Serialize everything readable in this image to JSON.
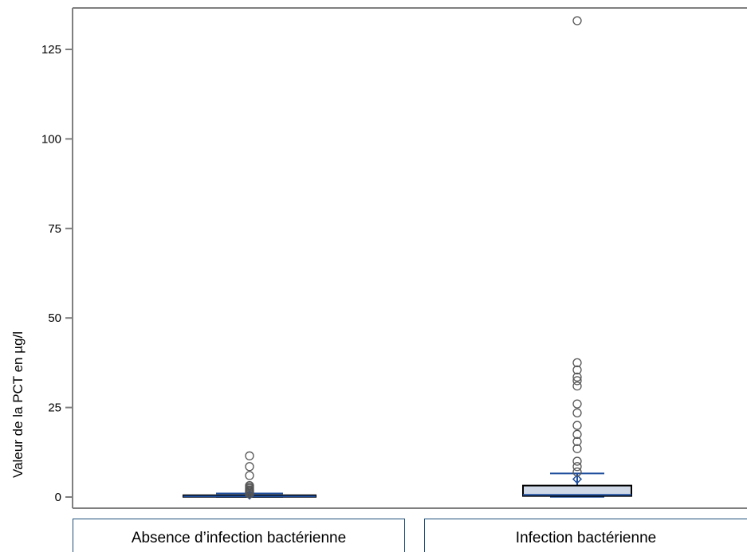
{
  "chart_data": {
    "type": "box",
    "ylabel": "Valeur de la PCT en µg/l",
    "xlabel": "",
    "ylim": [
      -3,
      136
    ],
    "yticks": [
      0,
      25,
      50,
      75,
      100,
      125
    ],
    "categories": [
      "Absence d’infection bactérienne",
      "Infection bactérienne"
    ],
    "series": [
      {
        "category": "Absence d’infection bactérienne",
        "q1": 0.1,
        "median": 0.2,
        "q3": 0.5,
        "whisker_low": 0.05,
        "whisker_high": 1.0,
        "mean": 0.6,
        "outliers": [
          11.5,
          8.5,
          6.0,
          3.2,
          2.8,
          2.4,
          2.0,
          1.8,
          1.5,
          1.3,
          0.9
        ]
      },
      {
        "category": "Infection bactérienne",
        "q1": 0.3,
        "median": 0.6,
        "q3": 3.2,
        "whisker_low": 0.05,
        "whisker_high": 6.6,
        "mean": 5.0,
        "outliers": [
          133,
          37.5,
          35.5,
          33.5,
          32.5,
          31.0,
          26.0,
          23.5,
          20.0,
          17.5,
          15.5,
          13.5,
          10.0,
          8.5,
          7.0
        ]
      }
    ],
    "grid": false,
    "legend": "none",
    "colors": {
      "box_fill": "#cfd9e8",
      "accent": "#1f4e9c",
      "frame": "#7f7f7f"
    }
  }
}
